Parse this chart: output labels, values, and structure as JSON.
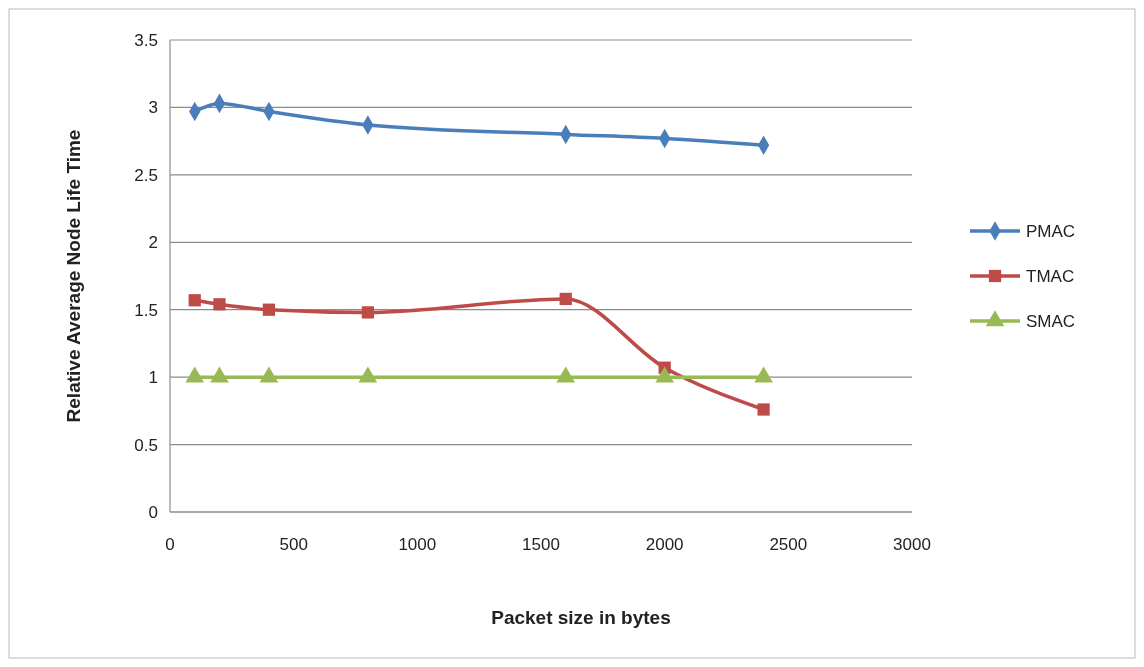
{
  "chart_data": {
    "type": "line",
    "xlabel": "Packet size in bytes",
    "ylabel": "Relative Average Node Life Time",
    "xlim": [
      0,
      3000
    ],
    "xticks": [
      0,
      500,
      1000,
      1500,
      2000,
      2500,
      3000
    ],
    "ylim": [
      0,
      3.5
    ],
    "yticks": [
      0,
      0.5,
      1,
      1.5,
      2,
      2.5,
      3,
      3.5
    ],
    "grid": "y",
    "legend": "right",
    "series": [
      {
        "name": "PMAC",
        "color": "#4a7ebb",
        "marker": "diamond",
        "x": [
          100,
          200,
          400,
          800,
          1600,
          2000,
          2400
        ],
        "values": [
          2.97,
          3.03,
          2.97,
          2.87,
          2.8,
          2.77,
          2.72
        ]
      },
      {
        "name": "TMAC",
        "color": "#be4b48",
        "marker": "square",
        "x": [
          100,
          200,
          400,
          800,
          1600,
          2000,
          2400
        ],
        "values": [
          1.57,
          1.54,
          1.5,
          1.48,
          1.58,
          1.07,
          0.76
        ]
      },
      {
        "name": "SMAC",
        "color": "#98b954",
        "marker": "triangle",
        "x": [
          100,
          200,
          400,
          800,
          1600,
          2000,
          2400
        ],
        "values": [
          1,
          1,
          1,
          1,
          1,
          1,
          1
        ]
      }
    ]
  }
}
